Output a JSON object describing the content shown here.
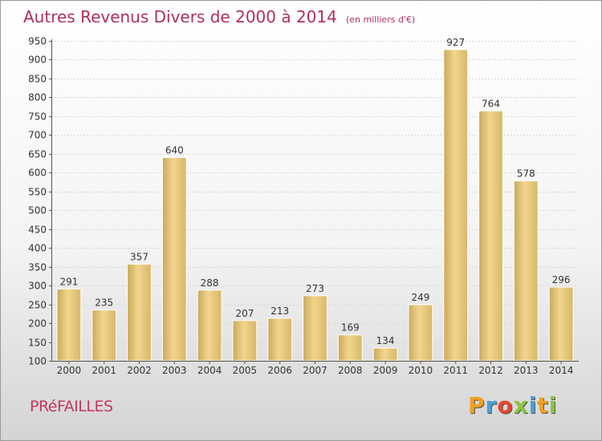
{
  "header": {
    "title": "Autres Revenus Divers de 2000 à 2014",
    "unit": "(en milliers d'€)"
  },
  "footer": {
    "commune": "PRéFAILLES",
    "logo": [
      "P",
      "r",
      "o",
      "x",
      "i",
      "t",
      "i"
    ],
    "logo_colors": [
      "#f0a020",
      "#4aa0d8",
      "#e8452c",
      "#8cc63f",
      "#4aa0d8",
      "#f0a020",
      "#8cc63f"
    ]
  },
  "chart_data": {
    "type": "bar",
    "title": "Autres Revenus Divers de 2000 à 2014",
    "xlabel": "",
    "ylabel": "",
    "categories": [
      "2000",
      "2001",
      "2002",
      "2003",
      "2004",
      "2005",
      "2006",
      "2007",
      "2008",
      "2009",
      "2010",
      "2011",
      "2012",
      "2013",
      "2014"
    ],
    "values": [
      291,
      235,
      357,
      640,
      288,
      207,
      213,
      273,
      169,
      134,
      249,
      927,
      764,
      578,
      296
    ],
    "ylim": [
      100,
      950
    ],
    "yticks": [
      100,
      150,
      200,
      250,
      300,
      350,
      400,
      450,
      500,
      550,
      600,
      650,
      700,
      750,
      800,
      850,
      900,
      950
    ],
    "grid": true,
    "bar_color": "#e3c478",
    "legend": "none"
  }
}
